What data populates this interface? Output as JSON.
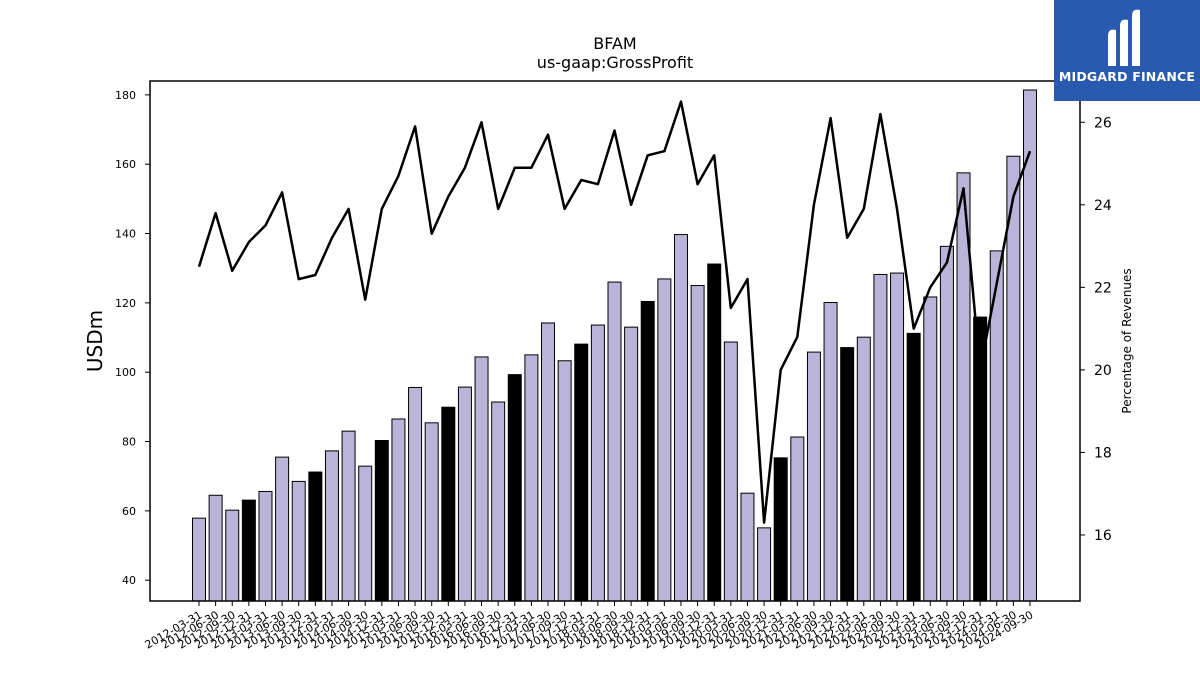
{
  "logo": {
    "text": "MIDGARD FINANCE",
    "icon": "midgard-m-icon",
    "background": "#2a5ab0"
  },
  "colors": {
    "bar": "#b9b4d8",
    "bar_highlight": "#000000",
    "line": "#000000"
  },
  "chart_data": {
    "type": "bar",
    "title": "BFAM",
    "subtitle": "us-gaap:GrossProfit",
    "ylabel": "USDm",
    "y2label": "Percentage of Revenues",
    "ylim": [
      34,
      184
    ],
    "y2lim": [
      14.4,
      27.0
    ],
    "yticks": [
      40,
      60,
      80,
      100,
      120,
      140,
      160,
      180
    ],
    "y2ticks": [
      16,
      18,
      20,
      22,
      24,
      26
    ],
    "categories": [
      "2012-03-31",
      "2012-06-30",
      "2012-09-30",
      "2012-12-31",
      "2013-03-31",
      "2013-06-30",
      "2013-09-30",
      "2013-12-31",
      "2014-03-31",
      "2014-06-30",
      "2014-09-30",
      "2014-12-31",
      "2015-03-31",
      "2015-06-30",
      "2015-09-30",
      "2015-12-31",
      "2016-03-31",
      "2016-06-30",
      "2016-09-30",
      "2016-12-31",
      "2017-03-31",
      "2017-06-30",
      "2017-09-30",
      "2017-12-31",
      "2018-03-31",
      "2018-06-30",
      "2018-09-30",
      "2018-12-31",
      "2019-03-31",
      "2019-06-30",
      "2019-09-30",
      "2019-12-31",
      "2020-03-31",
      "2020-06-30",
      "2020-09-30",
      "2020-12-31",
      "2021-03-31",
      "2021-06-30",
      "2021-09-30",
      "2021-12-31",
      "2022-03-31",
      "2022-06-30",
      "2022-09-30",
      "2022-12-31",
      "2023-03-31",
      "2023-06-30",
      "2023-09-30",
      "2023-12-31",
      "2024-03-31",
      "2024-06-30",
      "2024-09-30"
    ],
    "series": [
      {
        "type": "bar",
        "values": [
          57.9,
          64.5,
          60.2,
          63.1,
          65.6,
          75.5,
          68.5,
          71.2,
          77.3,
          83.0,
          72.9,
          80.3,
          86.5,
          95.6,
          85.4,
          89.9,
          95.7,
          104.4,
          91.4,
          99.3,
          105.0,
          114.2,
          103.3,
          108.1,
          113.6,
          126.0,
          113.0,
          120.4,
          126.9,
          139.7,
          125.0,
          131.2,
          108.7,
          65.1,
          55.1,
          75.3,
          81.3,
          105.8,
          120.1,
          107.1,
          110.1,
          128.2,
          128.6,
          111.2,
          121.7,
          136.3,
          157.5,
          115.9,
          135.0,
          162.3,
          181.4
        ],
        "highlight_categories": [
          "2012-12-31",
          "2013-12-31",
          "2014-12-31",
          "2015-12-31",
          "2016-12-31",
          "2017-12-31",
          "2018-12-31",
          "2019-12-31",
          "2020-12-31",
          "2021-12-31",
          "2022-12-31",
          "2023-12-31"
        ]
      },
      {
        "type": "line",
        "axis": "right",
        "values": [
          22.5,
          23.8,
          22.4,
          23.1,
          23.5,
          24.3,
          22.2,
          22.3,
          23.2,
          23.9,
          21.7,
          23.9,
          24.7,
          25.9,
          23.3,
          24.2,
          24.9,
          26.0,
          23.9,
          24.9,
          24.9,
          25.7,
          23.9,
          24.6,
          24.5,
          25.8,
          24.0,
          25.2,
          25.3,
          26.5,
          24.5,
          25.2,
          21.5,
          22.2,
          16.3,
          20.0,
          20.8,
          24.0,
          26.1,
          23.2,
          23.9,
          26.2,
          23.9,
          21.0,
          22.0,
          22.6,
          24.4,
          20.0,
          22.1,
          24.2,
          25.3
        ]
      }
    ]
  }
}
